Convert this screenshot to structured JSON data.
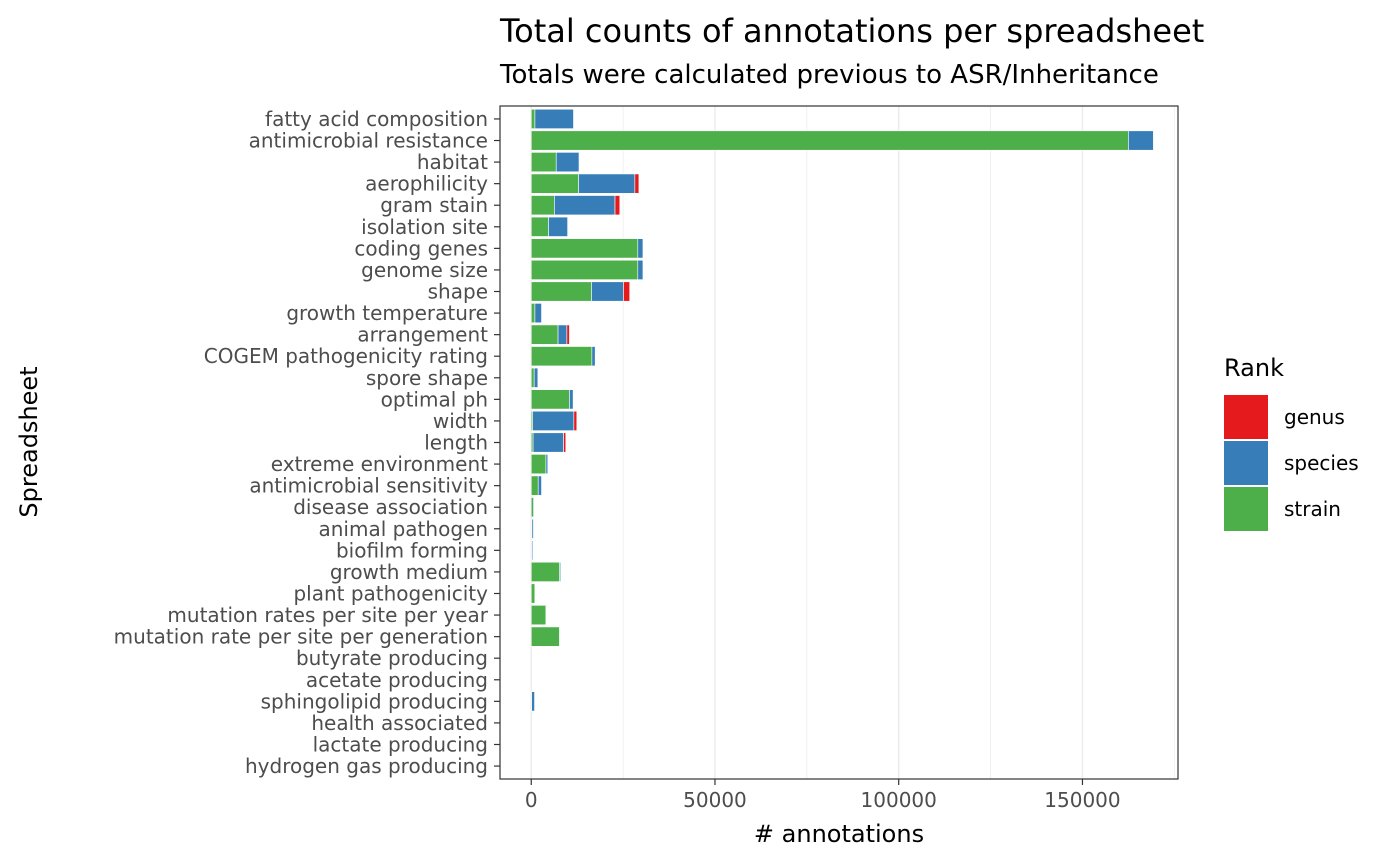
{
  "chart_data": {
    "type": "bar",
    "orientation": "horizontal",
    "stacked": true,
    "title": "Total counts of annotations per spreadsheet",
    "subtitle": "Totals were calculated previous to ASR/Inheritance",
    "xlabel": "# annotations",
    "ylabel": "Spreadsheet",
    "xlim": [
      -8500,
      176000
    ],
    "x_ticks": [
      0,
      50000,
      100000,
      150000
    ],
    "grid": true,
    "legend": {
      "title": "Rank",
      "placement": "right"
    },
    "categories": [
      "fatty acid composition",
      "antimicrobial resistance",
      "habitat",
      "aerophilicity",
      "gram stain",
      "isolation site",
      "coding genes",
      "genome size",
      "shape",
      "growth temperature",
      "arrangement",
      "COGEM pathogenicity rating",
      "spore shape",
      "optimal ph",
      "width",
      "length",
      "extreme environment",
      "antimicrobial sensitivity",
      "disease association",
      "animal pathogen",
      "biofilm forming",
      "growth medium",
      "plant pathogenicity",
      "mutation rates per site per year",
      "mutation rate per site per generation",
      "butyrate producing",
      "acetate producing",
      "sphingolipid producing",
      "health associated",
      "lactate producing",
      "hydrogen gas producing"
    ],
    "series": [
      {
        "name": "strain",
        "color": "#4DAF4A",
        "values": [
          1000,
          162500,
          6800,
          12900,
          6300,
          4700,
          29000,
          29000,
          16400,
          1000,
          7300,
          16500,
          800,
          10400,
          400,
          500,
          4000,
          1900,
          600,
          200,
          100,
          7700,
          1000,
          4000,
          7700,
          0,
          0,
          100,
          0,
          0,
          0
        ]
      },
      {
        "name": "species",
        "color": "#377EB8",
        "values": [
          10500,
          6800,
          6200,
          15300,
          16500,
          5200,
          1400,
          1400,
          8700,
          1800,
          2400,
          900,
          1000,
          1000,
          11200,
          8300,
          500,
          900,
          200,
          400,
          300,
          300,
          100,
          100,
          100,
          0,
          0,
          800,
          0,
          0,
          0
        ]
      },
      {
        "name": "genus",
        "color": "#E41A1C",
        "values": [
          0,
          0,
          0,
          1100,
          1300,
          0,
          0,
          0,
          1700,
          0,
          700,
          0,
          0,
          0,
          800,
          600,
          0,
          0,
          0,
          0,
          0,
          0,
          0,
          0,
          0,
          0,
          0,
          0,
          0,
          0,
          0
        ]
      }
    ],
    "legend_order": [
      "genus",
      "species",
      "strain"
    ]
  }
}
